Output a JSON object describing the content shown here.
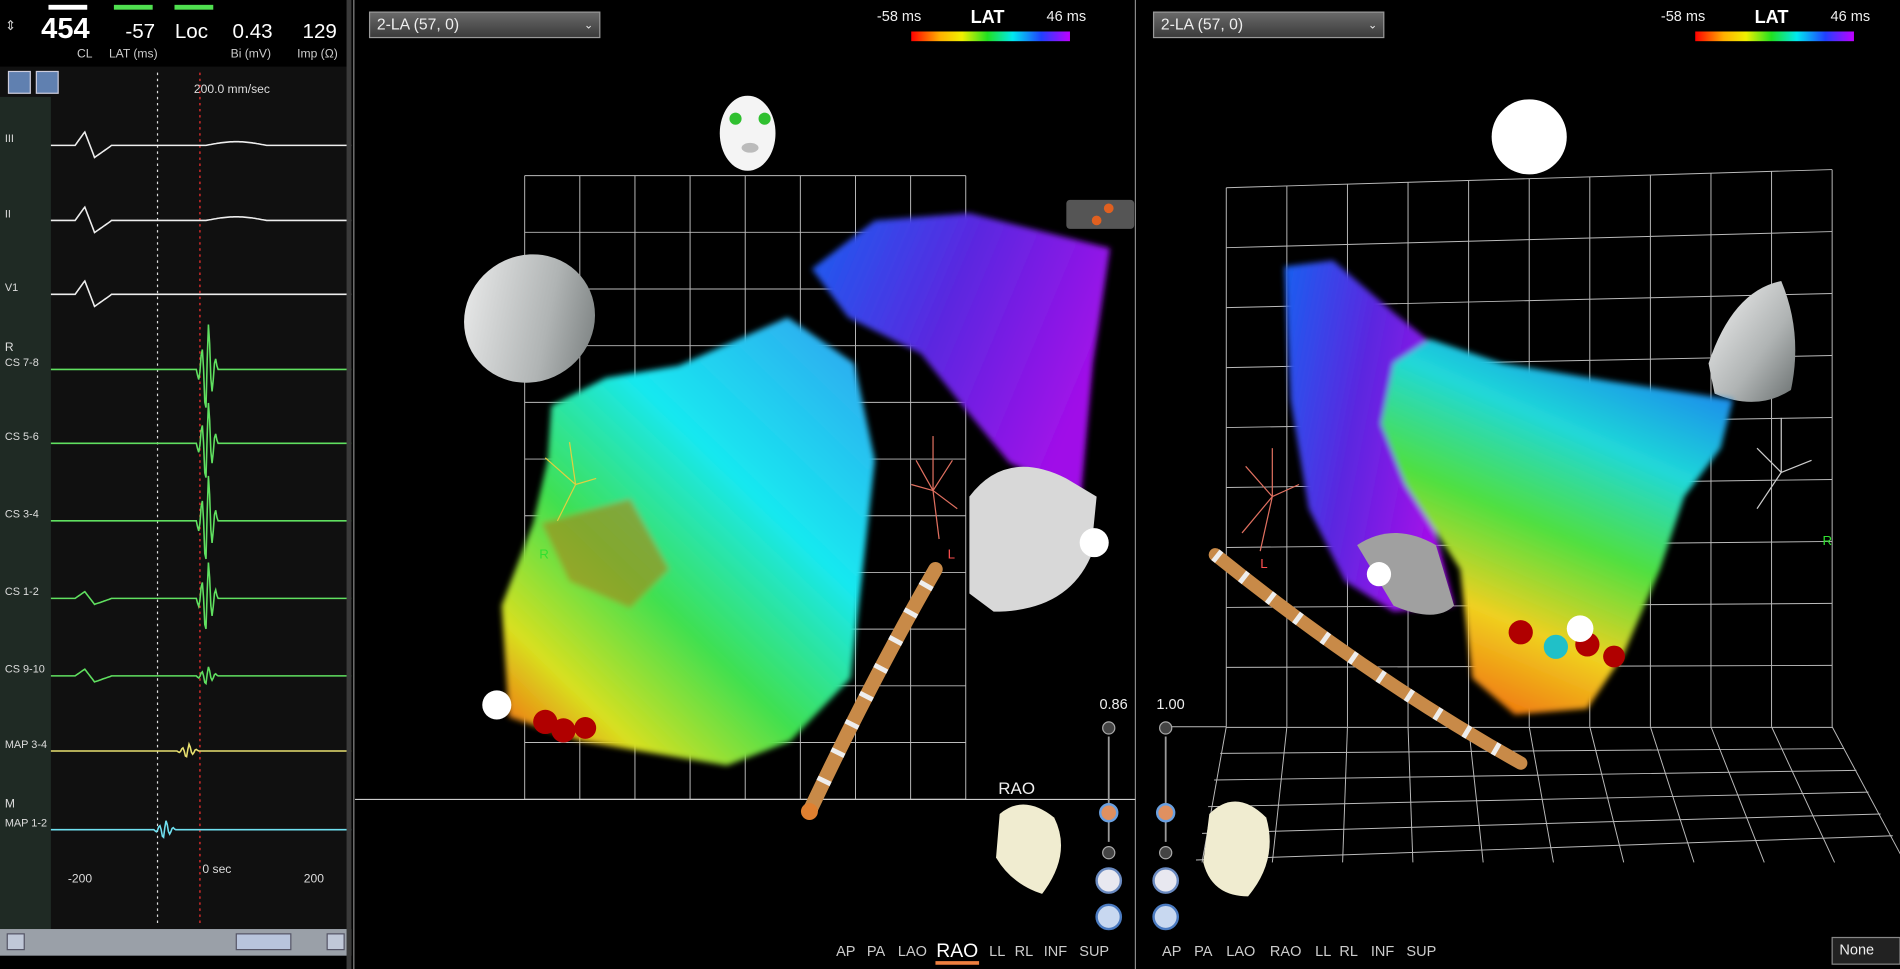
{
  "ecg_panel": {
    "header": {
      "cl": {
        "value": "454",
        "label": "CL"
      },
      "lat": {
        "value": "-57",
        "label": "LAT (ms)"
      },
      "loc": "Loc",
      "bi": {
        "value": "0.43",
        "label": "Bi (mV)"
      },
      "imp": {
        "value": "129",
        "label": "Imp (Ω)"
      }
    },
    "speed": "200.0 mm/sec",
    "channels": [
      "III",
      "II",
      "V1",
      "CS 7-8",
      "CS 5-6",
      "CS 3-4",
      "CS 1-2",
      "CS 9-10",
      "MAP 3-4",
      "MAP 1-2"
    ],
    "group_labels": [
      "R",
      "M"
    ],
    "time_axis": [
      "-200",
      "0 sec",
      "200"
    ]
  },
  "views": [
    {
      "dropdown": "2-LA (57, 0)",
      "scale": {
        "min": "-58 ms",
        "title": "LAT",
        "max": "46 ms"
      },
      "zoom": "0.86",
      "orientation": "RAO",
      "markers": [
        "R",
        "L"
      ],
      "view_buttons": [
        "AP",
        "PA",
        "LAO",
        "RAO",
        "LL",
        "RL",
        "INF",
        "SUP"
      ]
    },
    {
      "dropdown": "2-LA (57, 0)",
      "scale": {
        "min": "-58 ms",
        "title": "LAT",
        "max": "46 ms"
      },
      "zoom": "1.00",
      "markers": [
        "L",
        "R"
      ],
      "view_buttons": [
        "AP",
        "PA",
        "LAO",
        "RAO",
        "LL",
        "RL",
        "INF",
        "SUP"
      ],
      "option": "None"
    }
  ]
}
